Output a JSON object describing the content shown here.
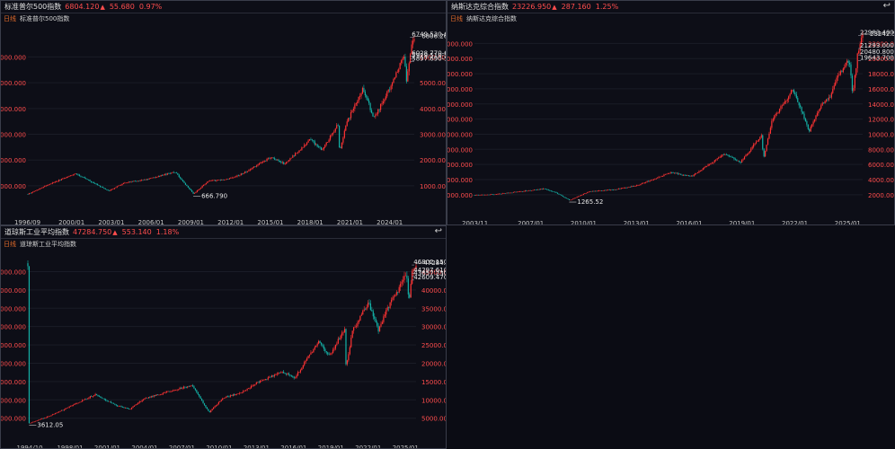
{
  "panels": [
    {
      "title": "标准普尔500指数",
      "price": "6804.120",
      "change": "55.680",
      "pct": "0.97%",
      "period": "日线",
      "subtitle": "标准普尔500指数"
    },
    {
      "title": "纳斯达克综合指数",
      "price": "23226.950",
      "change": "287.160",
      "pct": "1.25%",
      "period": "日线",
      "subtitle": "纳斯达克综合指数"
    },
    {
      "title": "道琼斯工业平均指数",
      "price": "47284.750",
      "change": "553.140",
      "pct": "1.18%",
      "period": "日线",
      "subtitle": "道琼斯工业平均指数"
    }
  ],
  "colors": {
    "up": "#ff3333",
    "down": "#14b3a8",
    "axis": "#ff4d4d",
    "bg": "#0d0e17"
  },
  "icons": {
    "reset": "return-icon"
  },
  "chart_data": [
    {
      "type": "candlestick",
      "yticks_left": [
        "6000.000",
        "5000.000",
        "4000.000",
        "3000.000",
        "2000.000",
        "1000.000"
      ],
      "yticks_right": [
        "6000.000",
        "5000.000",
        "4000.000",
        "3000.000",
        "2000.000",
        "1000.000"
      ],
      "ytick_values": [
        6000,
        5000,
        4000,
        3000,
        2000,
        1000
      ],
      "ylim": [
        300,
        7200
      ],
      "xticks": [
        "1996/09",
        "2000/01",
        "2003/01",
        "2006/01",
        "2009/01",
        "2012/01",
        "2015/01",
        "2018/01",
        "2021/01",
        "2024/01"
      ],
      "xlim": [
        1996.7,
        2025.85
      ],
      "series": [
        [
          1996.7,
          680
        ],
        [
          1998.5,
          1100
        ],
        [
          2000.3,
          1480
        ],
        [
          2001.5,
          1150
        ],
        [
          2002.8,
          800
        ],
        [
          2004.0,
          1120
        ],
        [
          2005.5,
          1230
        ],
        [
          2007.8,
          1540
        ],
        [
          2009.2,
          690
        ],
        [
          2010.3,
          1180
        ],
        [
          2011.8,
          1250
        ],
        [
          2013.0,
          1500
        ],
        [
          2015.0,
          2100
        ],
        [
          2016.1,
          1850
        ],
        [
          2018.0,
          2800
        ],
        [
          2018.9,
          2400
        ],
        [
          2020.1,
          3380
        ],
        [
          2020.22,
          2250
        ],
        [
          2020.7,
          3400
        ],
        [
          2022.0,
          4780
        ],
        [
          2022.8,
          3600
        ],
        [
          2024.0,
          4780
        ],
        [
          2025.1,
          6100
        ],
        [
          2025.28,
          4980
        ],
        [
          2025.55,
          6200
        ],
        [
          2025.85,
          6804
        ]
      ],
      "min_label": "666.790",
      "min_point": [
        2009.18,
        666.79
      ],
      "max_label": "6806.260",
      "max_point": [
        2025.8,
        6806.26
      ],
      "ranges": [
        {
          "label": "6749.530-6772.070",
          "value": 6760
        },
        {
          "label": "6028.770-6055.250",
          "value": 6040
        },
        {
          "label": "5929.510-5947.880",
          "value": 5938
        },
        {
          "label": "5897.690-5767.410",
          "value": 5830
        }
      ]
    },
    {
      "type": "candlestick",
      "yticks_left": [
        "22000.000",
        "20000.000",
        "18000.000",
        "16000.000",
        "14000.000",
        "12000.000",
        "10000.000",
        "8000.000",
        "6000.000",
        "4000.000",
        "2000.000"
      ],
      "yticks_right": [
        "22000.000",
        "20000.000",
        "18000.000",
        "16000.000",
        "14000.000",
        "12000.000",
        "10000.000",
        "8000.000",
        "6000.000",
        "4000.000",
        "2000.000"
      ],
      "ytick_values": [
        22000,
        20000,
        18000,
        16000,
        14000,
        12000,
        10000,
        8000,
        6000,
        4000,
        2000
      ],
      "ylim": [
        200,
        24300
      ],
      "xticks": [
        "2003/11",
        "2007/01",
        "2010/01",
        "2013/01",
        "2016/01",
        "2019/01",
        "2022/01",
        "2025/01"
      ],
      "xlim": [
        2003.8,
        2025.85
      ],
      "series": [
        [
          2003.8,
          1950
        ],
        [
          2005.0,
          2050
        ],
        [
          2007.8,
          2800
        ],
        [
          2008.5,
          2200
        ],
        [
          2009.2,
          1270
        ],
        [
          2010.3,
          2400
        ],
        [
          2011.8,
          2700
        ],
        [
          2013.0,
          3200
        ],
        [
          2015.0,
          4950
        ],
        [
          2016.1,
          4400
        ],
        [
          2018.0,
          7400
        ],
        [
          2018.9,
          6300
        ],
        [
          2020.1,
          9800
        ],
        [
          2020.22,
          6800
        ],
        [
          2020.7,
          11800
        ],
        [
          2021.9,
          16000
        ],
        [
          2022.8,
          10400
        ],
        [
          2023.5,
          13800
        ],
        [
          2024.0,
          15000
        ],
        [
          2024.5,
          18000
        ],
        [
          2025.1,
          19800
        ],
        [
          2025.28,
          15300
        ],
        [
          2025.55,
          20300
        ],
        [
          2025.85,
          23226
        ]
      ],
      "min_label": "1265.52",
      "min_point": [
        2009.18,
        1265.52
      ],
      "max_label": "23242.55",
      "max_point": [
        2025.8,
        23242.55
      ],
      "ranges": [
        {
          "label": "22983.400-23127.950",
          "value": 23050
        },
        {
          "label": "21293.000-21370.980",
          "value": 21330
        },
        {
          "label": "20480.800-20486.380",
          "value": 20483
        },
        {
          "label": "19643.700-19795.290",
          "value": 19720
        }
      ]
    },
    {
      "type": "candlestick",
      "yticks_left": [
        "45000.000",
        "40000.000",
        "35000.000",
        "30000.000",
        "25000.000",
        "20000.000",
        "15000.000",
        "10000.000",
        "5000.000"
      ],
      "yticks_right": [
        "45000.000",
        "40000.000",
        "35000.000",
        "30000.000",
        "25000.000",
        "20000.000",
        "15000.000",
        "10000.000",
        "5000.000"
      ],
      "ytick_values": [
        45000,
        40000,
        35000,
        30000,
        25000,
        20000,
        15000,
        10000,
        5000
      ],
      "ylim": [
        1500,
        50500
      ],
      "xticks": [
        "1994/10",
        "1998/01",
        "2001/01",
        "2004/01",
        "2007/01",
        "2010/01",
        "2013/01",
        "2016/01",
        "2019/01",
        "2022/01",
        "2025/01"
      ],
      "xlim": [
        1994.6,
        2025.85
      ],
      "series": [
        [
          1994.7,
          3612
        ],
        [
          1996.5,
          5800
        ],
        [
          1998.5,
          9000
        ],
        [
          2000.0,
          11500
        ],
        [
          2001.7,
          8500
        ],
        [
          2002.8,
          7500
        ],
        [
          2004.0,
          10400
        ],
        [
          2007.8,
          14000
        ],
        [
          2009.2,
          6600
        ],
        [
          2010.3,
          10500
        ],
        [
          2011.8,
          12000
        ],
        [
          2013.0,
          14500
        ],
        [
          2015.0,
          17800
        ],
        [
          2016.1,
          16000
        ],
        [
          2018.0,
          26000
        ],
        [
          2018.9,
          22000
        ],
        [
          2020.1,
          29500
        ],
        [
          2020.22,
          18600
        ],
        [
          2020.7,
          28500
        ],
        [
          2022.0,
          36500
        ],
        [
          2022.8,
          29000
        ],
        [
          2023.5,
          34500
        ],
        [
          2024.0,
          37500
        ],
        [
          2025.1,
          44500
        ],
        [
          2025.28,
          37000
        ],
        [
          2025.55,
          45000
        ],
        [
          2025.85,
          47284
        ]
      ],
      "min_label": "3612.05",
      "min_point": [
        1994.7,
        3612.05
      ],
      "max_label": "47284.75",
      "max_point": [
        2025.8,
        47284.75
      ],
      "ranges": [
        {
          "label": "46802.150-46811.510",
          "value": 46806
        },
        {
          "label": "44297.610-44848.150",
          "value": 44570
        },
        {
          "label": "43657.230-43825.590",
          "value": 43740
        },
        {
          "label": "42609.470-42794.080",
          "value": 42700
        }
      ]
    }
  ]
}
